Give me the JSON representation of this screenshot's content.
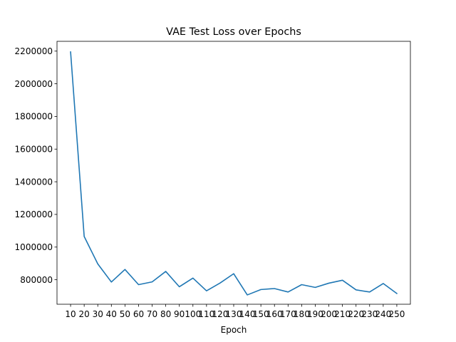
{
  "chart_data": {
    "type": "line",
    "title": "VAE Test Loss over Epochs",
    "xlabel": "Epoch",
    "ylabel": "",
    "x": [
      10,
      20,
      30,
      40,
      50,
      60,
      70,
      80,
      90,
      100,
      110,
      120,
      130,
      140,
      150,
      160,
      170,
      180,
      190,
      200,
      210,
      220,
      230,
      240,
      250
    ],
    "series": [
      {
        "values": [
          2195000,
          1065000,
          897000,
          786000,
          863000,
          770000,
          787000,
          851000,
          757000,
          810000,
          732000,
          780000,
          837000,
          707000,
          740000,
          746000,
          725000,
          770000,
          753000,
          779000,
          797000,
          738000,
          725000,
          777000,
          716000
        ],
        "color": "#1f77b4"
      }
    ],
    "xticks": [
      "10",
      "20",
      "30",
      "40",
      "50",
      "60",
      "70",
      "80",
      "90",
      "100",
      "110",
      "120",
      "130",
      "140",
      "150",
      "160",
      "170",
      "180",
      "190",
      "200",
      "210",
      "220",
      "230",
      "240",
      "250"
    ],
    "yticks": [
      "800000",
      "1000000",
      "1200000",
      "1400000",
      "1600000",
      "1800000",
      "2000000",
      "2200000"
    ],
    "ylim": [
      650000,
      2260000
    ],
    "grid": false,
    "legend": "none"
  }
}
